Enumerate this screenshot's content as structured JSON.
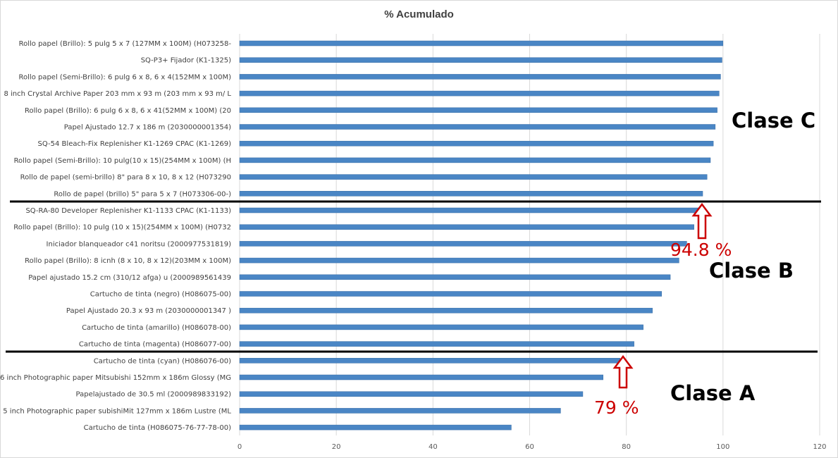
{
  "chart_data": {
    "type": "bar",
    "orientation": "horizontal",
    "title": "% Acumulado",
    "xlim": [
      0,
      120
    ],
    "x_ticks": [
      0,
      20,
      40,
      60,
      80,
      100,
      120
    ],
    "grid": true,
    "bar_color": "#4a86c5",
    "categories": [
      "Rollo papel (Brillo): 5 pulg 5 x 7 (127MM x 100M) (H073258-",
      "SQ-P3+ Fijador (K1-1325)",
      "Rollo papel (Semi-Brillo): 6 pulg 6 x 8, 6 x 4(152MM x 100M)",
      "8 inch Crystal Archive Paper 203 mm x 93 m (203 mm x 93 m/ L",
      "Rollo papel (Brillo): 6 pulg  6 x 8, 6 x 41(52MM x 100M) (20",
      "Papel Ajustado 12.7 x 186 m (2030000001354)",
      "SQ-54 Bleach-Fix Replenisher K1-1269 CPAC (K1-1269)",
      "Rollo papel (Semi-Brillo): 10 pulg(10 x 15)(254MM x 100M) (H",
      "Rollo de papel (semi-brillo) 8\" para 8 x 10, 8 x 12 (H073290",
      "Rollo de papel (brillo) 5\" para 5 x 7 (H073306-00-)",
      "SQ-RA-80 Developer Replenisher K1-1133 CPAC (K1-1133)",
      "Rollo papel (Brillo): 10 pulg (10 x 15)(254MM x 100M) (H0732",
      "Iniciador blanqueador c41 noritsu (2000977531819)",
      "Rollo papel (Brillo): 8 icnh (8 x 10, 8 x 12)(203MM x 100M)",
      "Papel ajustado 15.2 cm (310/12 afga) u (2000989561439",
      "Cartucho de tinta (negro) (H086075-00)",
      "Papel Ajustado 20.3 x 93 m (2030000001347 )",
      "Cartucho de tinta (amarillo) (H086078-00)",
      "Cartucho de tinta (magenta) (H086077-00)",
      "Cartucho de tinta (cyan) (H086076-00)",
      "6 inch Photographic paper Mitsubishi 152mm x 186m Glossy (MG",
      "Papelajustado de 30.5 ml (2000989833192)",
      "5 inch Photographic paper subishiMit 127mm x 186m Lustre (ML",
      "Cartucho de tinta (H086075-76-77-78-00)"
    ],
    "values": [
      100,
      99.8,
      99.5,
      99.2,
      98.8,
      98.4,
      98.0,
      97.4,
      96.7,
      95.8,
      94.9,
      94.0,
      92.5,
      90.9,
      89.1,
      87.3,
      85.4,
      83.5,
      81.6,
      78.7,
      75.2,
      71.0,
      66.4,
      56.2
    ]
  },
  "annotations": {
    "class_c": "Clase C",
    "class_b": "Clase B",
    "class_a": "Clase A",
    "threshold_b": "94.8 %",
    "threshold_a": "79 %"
  },
  "colors": {
    "arrow": "#cc0000",
    "separator": "#000000",
    "gridline": "#d9d9d9"
  }
}
